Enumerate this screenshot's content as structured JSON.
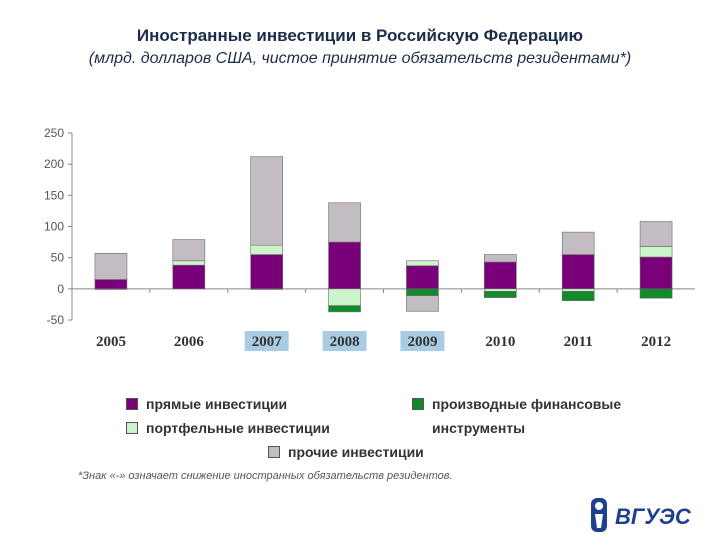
{
  "header": {
    "title": "Иностранные инвестиции в Российскую Федерацию",
    "subtitle": "(млрд. долларов США, чистое принятие обязательств резидентами*)"
  },
  "legend": {
    "direct": "прямые инвестиции",
    "portfolio": "портфельные инвестиции",
    "derivatives_line1": "производные финансовые",
    "derivatives_line2": "инструменты",
    "other": "прочие инвестиции"
  },
  "footnote": "*Знак «-» означает снижение иностранных обязательств резидентов.",
  "logo_text": "ВГУЭС",
  "chart_data": {
    "type": "bar",
    "stacked": true,
    "categories": [
      "2005",
      "2006",
      "2007",
      "2008",
      "2009",
      "2010",
      "2011",
      "2012"
    ],
    "highlighted_categories": [
      "2007",
      "2008",
      "2009"
    ],
    "ylim": [
      -50,
      250
    ],
    "yticks": [
      250,
      200,
      150,
      100,
      50,
      0,
      -50
    ],
    "series": [
      {
        "name": "прямые инвестиции",
        "color": "#7a007a",
        "values": [
          15,
          38,
          55,
          75,
          37,
          43,
          55,
          51
        ]
      },
      {
        "name": "портфельные инвестиции",
        "color": "#ccf5cc",
        "values": [
          -1,
          7,
          15,
          -27,
          8,
          -4,
          -4,
          17
        ]
      },
      {
        "name": "производные финансовые инструменты",
        "color": "#138a2a",
        "values": [
          0,
          0,
          -1,
          -10,
          -11,
          -10,
          -15,
          -15
        ]
      },
      {
        "name": "прочие инвестиции",
        "color": "#c3bdc3",
        "values": [
          42,
          34,
          142,
          63,
          -25,
          12,
          36,
          40
        ]
      }
    ]
  }
}
